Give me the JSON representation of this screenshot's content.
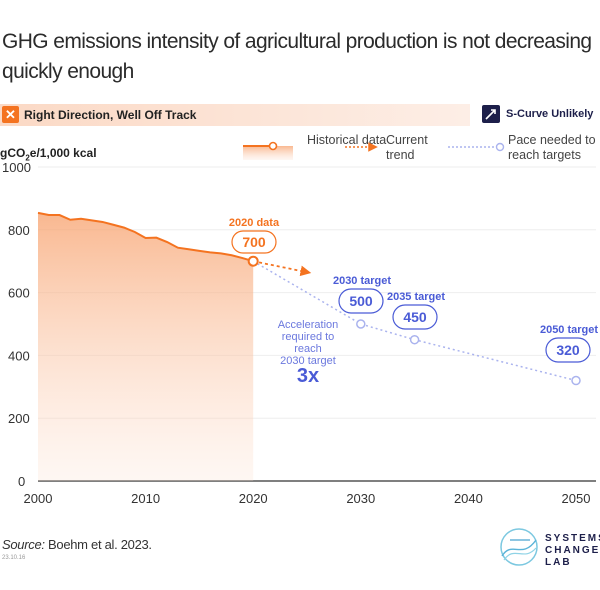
{
  "title": "GHG emissions intensity of agricultural production is not decreasing quickly enough",
  "status": {
    "icon": "x-icon",
    "label": "Right Direction, Well Off Track",
    "color": "#f47320"
  },
  "scurve": {
    "icon": "s-curve-arrow-icon",
    "label": "S-Curve Unlikely"
  },
  "unit_label_pre": "gCO",
  "unit_label_sub": "2",
  "unit_label_post": "e/1,000 kcal",
  "legend": {
    "historical": "Historical data",
    "trend": "Current trend",
    "pace": "Pace needed to reach targets"
  },
  "chart_data": {
    "type": "line",
    "xlim": [
      2000,
      2050
    ],
    "ylim": [
      0,
      1000
    ],
    "x_ticks": [
      2000,
      2010,
      2020,
      2030,
      2040,
      2050
    ],
    "y_ticks": [
      0,
      200,
      400,
      600,
      800,
      1000
    ],
    "grid": true,
    "legend_placement": "top-right",
    "colors": {
      "historical": "#f47320",
      "trend": "#f47320",
      "pace": "#aab3ee",
      "target_text": "#4a5bd6"
    },
    "historical": {
      "x": [
        2000,
        2001,
        2002,
        2003,
        2004,
        2005,
        2006,
        2007,
        2008,
        2009,
        2010,
        2011,
        2012,
        2013,
        2014,
        2015,
        2016,
        2017,
        2018,
        2019,
        2020
      ],
      "y": [
        854,
        847,
        847,
        832,
        835,
        830,
        825,
        816,
        807,
        793,
        774,
        775,
        761,
        743,
        738,
        733,
        728,
        725,
        719,
        710,
        700
      ]
    },
    "trend": {
      "x": [
        2020,
        2025
      ],
      "y": [
        700,
        665
      ]
    },
    "pace": {
      "x": [
        2020,
        2030,
        2035,
        2050
      ],
      "y": [
        700,
        500,
        450,
        320
      ]
    },
    "annotations": {
      "data2020": {
        "label": "2020 data",
        "value": "700"
      },
      "targets": [
        {
          "label": "2030 target",
          "value": "500"
        },
        {
          "label": "2035 target",
          "value": "450"
        },
        {
          "label": "2050 target",
          "value": "320"
        }
      ],
      "acceleration_text": [
        "Acceleration",
        "required to",
        "reach",
        "2030 target"
      ],
      "acceleration_value": "3x"
    }
  },
  "source_label": "Source:",
  "source_text": " Boehm et al. 2023.",
  "date": "23.10.16",
  "logo": {
    "lines": [
      "SYSTEMS",
      "CHANGE",
      "LAB"
    ]
  }
}
